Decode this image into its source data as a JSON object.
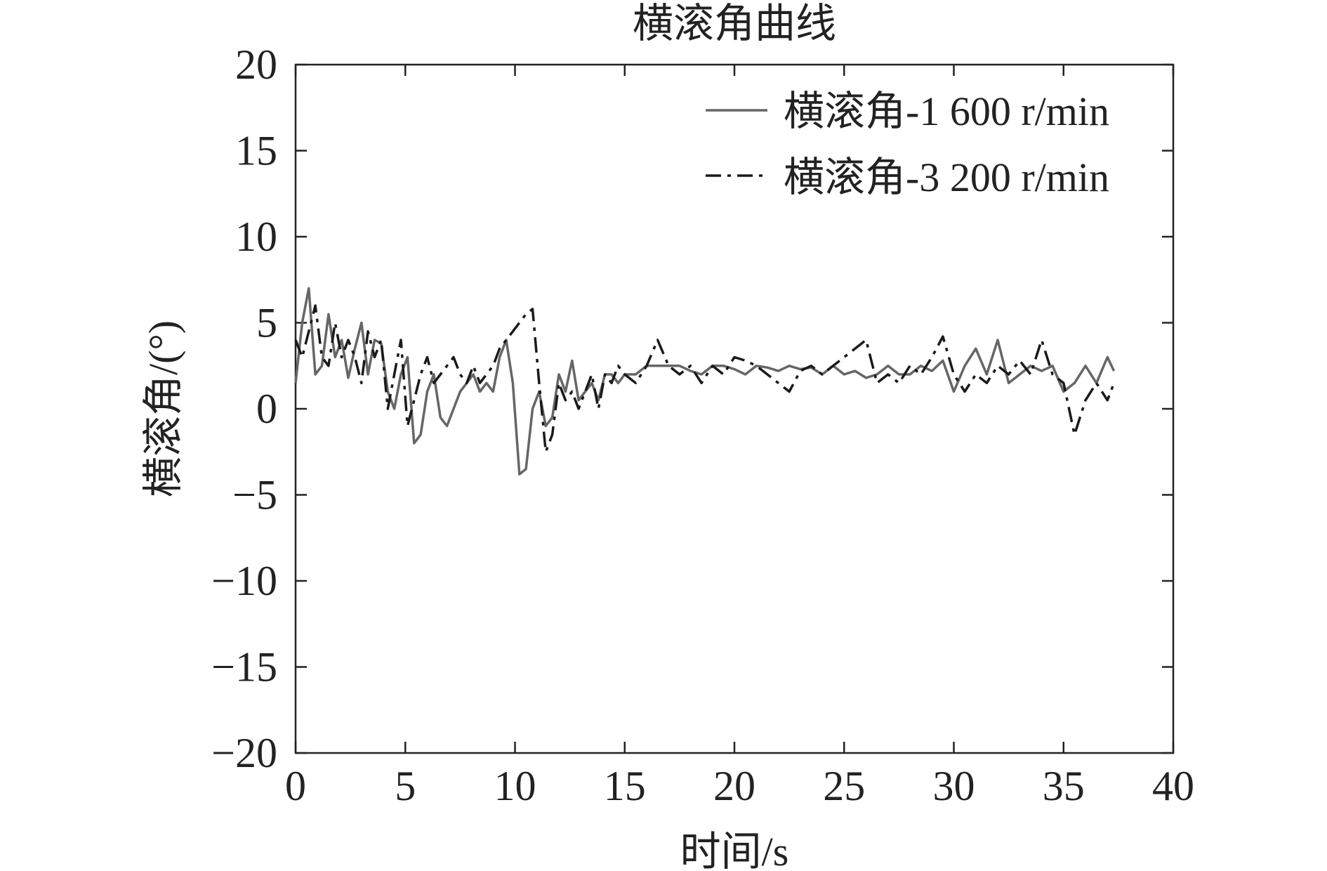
{
  "chart_data": {
    "type": "line",
    "title": "横滚角曲线",
    "xlabel": "时间/s",
    "ylabel": "横滚角/(°)",
    "xlim": [
      0,
      40
    ],
    "ylim": [
      -20,
      20
    ],
    "xticks": [
      0,
      5,
      10,
      15,
      20,
      25,
      30,
      35,
      40
    ],
    "yticks": [
      20,
      15,
      10,
      5,
      0,
      -5,
      -10,
      -15,
      -20
    ],
    "xtick_labels": [
      "0",
      "5",
      "10",
      "15",
      "20",
      "25",
      "30",
      "35",
      "40"
    ],
    "ytick_labels": [
      "20",
      "15",
      "10",
      "5",
      "0",
      "−5",
      "−10",
      "−15",
      "−20"
    ],
    "grid": false,
    "legend_position": "top-right",
    "series": [
      {
        "name": "横滚角-1 600 r/min",
        "color": "#666666",
        "style": "solid",
        "x": [
          0,
          0.3,
          0.6,
          0.9,
          1.2,
          1.5,
          1.8,
          2.1,
          2.4,
          2.7,
          3.0,
          3.3,
          3.6,
          3.9,
          4.2,
          4.5,
          4.8,
          5.1,
          5.4,
          5.7,
          6.0,
          6.3,
          6.6,
          6.9,
          7.2,
          7.5,
          7.8,
          8.1,
          8.4,
          8.7,
          9.0,
          9.3,
          9.6,
          9.9,
          10.2,
          10.5,
          10.8,
          11.1,
          11.4,
          11.7,
          12.0,
          12.3,
          12.6,
          12.9,
          13.2,
          13.5,
          13.8,
          14.1,
          14.4,
          14.7,
          15.0,
          15.5,
          16.0,
          16.5,
          17.0,
          17.5,
          18.0,
          18.5,
          19.0,
          19.5,
          20.0,
          20.5,
          21.0,
          21.5,
          22.0,
          22.5,
          23.0,
          23.5,
          24.0,
          24.5,
          25.0,
          25.5,
          26.0,
          26.5,
          27.0,
          27.5,
          28.0,
          28.5,
          29.0,
          29.5,
          30.0,
          30.5,
          31.0,
          31.5,
          32.0,
          32.5,
          33.0,
          33.5,
          34.0,
          34.5,
          35.0,
          35.5,
          36.0,
          36.5,
          37.0,
          37.3
        ],
        "y": [
          1.5,
          5.0,
          7.0,
          2.0,
          2.5,
          5.5,
          3.0,
          4.0,
          1.8,
          3.5,
          5.0,
          2.0,
          4.0,
          3.8,
          1.0,
          0.0,
          2.0,
          3.0,
          -2.0,
          -1.5,
          1.0,
          2.0,
          -0.5,
          -1.0,
          0.0,
          1.0,
          1.5,
          2.0,
          1.0,
          1.5,
          1.0,
          3.0,
          4.0,
          1.5,
          -3.8,
          -3.5,
          0.0,
          1.0,
          -1.0,
          -0.5,
          2.0,
          1.0,
          2.8,
          0.5,
          1.0,
          1.5,
          0.5,
          2.0,
          2.0,
          1.5,
          2.0,
          2.0,
          2.5,
          2.5,
          2.5,
          2.5,
          2.2,
          2.0,
          2.5,
          2.5,
          2.3,
          2.0,
          2.5,
          2.4,
          2.2,
          2.5,
          2.3,
          2.4,
          2.0,
          2.5,
          2.0,
          2.2,
          1.8,
          2.0,
          2.5,
          2.0,
          2.0,
          2.5,
          2.2,
          2.8,
          1.0,
          2.5,
          3.5,
          2.0,
          4.0,
          1.5,
          2.0,
          2.5,
          2.2,
          2.5,
          1.0,
          1.5,
          2.5,
          1.5,
          3.0,
          2.2
        ]
      },
      {
        "name": "横滚角-3 200 r/min",
        "color": "#1a1a1a",
        "style": "dashdot",
        "x": [
          0,
          0.3,
          0.6,
          0.9,
          1.2,
          1.5,
          1.8,
          2.1,
          2.4,
          2.7,
          3.0,
          3.3,
          3.6,
          3.9,
          4.2,
          4.5,
          4.8,
          5.1,
          5.4,
          5.7,
          6.0,
          6.3,
          6.6,
          6.9,
          7.2,
          7.5,
          7.8,
          8.1,
          8.4,
          8.7,
          9.0,
          9.3,
          9.6,
          9.9,
          10.2,
          10.5,
          10.8,
          11.1,
          11.4,
          11.7,
          12.0,
          12.3,
          12.6,
          12.9,
          13.2,
          13.5,
          13.8,
          14.1,
          14.4,
          14.7,
          15.0,
          15.5,
          16.0,
          16.5,
          17.0,
          17.5,
          18.0,
          18.5,
          19.0,
          19.5,
          20.0,
          20.5,
          21.0,
          21.5,
          22.0,
          22.5,
          23.0,
          23.5,
          24.0,
          24.5,
          25.0,
          25.5,
          26.0,
          26.5,
          27.0,
          27.5,
          28.0,
          28.5,
          29.0,
          29.5,
          30.0,
          30.5,
          31.0,
          31.5,
          32.0,
          32.5,
          33.0,
          33.5,
          34.0,
          34.5,
          35.0,
          35.5,
          36.0,
          36.5,
          37.0,
          37.3
        ],
        "y": [
          4.0,
          3.0,
          4.5,
          6.0,
          3.0,
          2.5,
          5.0,
          3.0,
          4.0,
          3.0,
          1.5,
          4.5,
          3.0,
          4.0,
          0.0,
          2.0,
          4.0,
          -1.0,
          0.5,
          2.0,
          3.0,
          1.5,
          2.0,
          2.5,
          3.0,
          2.0,
          1.5,
          2.5,
          1.5,
          2.0,
          2.5,
          3.5,
          4.0,
          4.5,
          5.0,
          5.5,
          5.8,
          1.5,
          -2.5,
          -1.5,
          1.5,
          0.5,
          1.0,
          0.0,
          1.0,
          2.0,
          0.0,
          2.0,
          1.5,
          2.5,
          2.0,
          1.5,
          2.5,
          4.0,
          2.5,
          2.0,
          2.5,
          1.5,
          2.5,
          2.0,
          3.0,
          2.8,
          2.5,
          2.0,
          1.5,
          1.0,
          2.2,
          2.5,
          2.0,
          2.5,
          3.0,
          3.5,
          4.0,
          1.5,
          2.0,
          1.5,
          2.5,
          2.0,
          3.0,
          4.2,
          2.0,
          1.0,
          2.0,
          1.5,
          2.5,
          2.0,
          2.8,
          2.0,
          4.0,
          2.0,
          1.5,
          -1.5,
          0.5,
          1.5,
          0.5,
          1.5
        ]
      }
    ]
  }
}
